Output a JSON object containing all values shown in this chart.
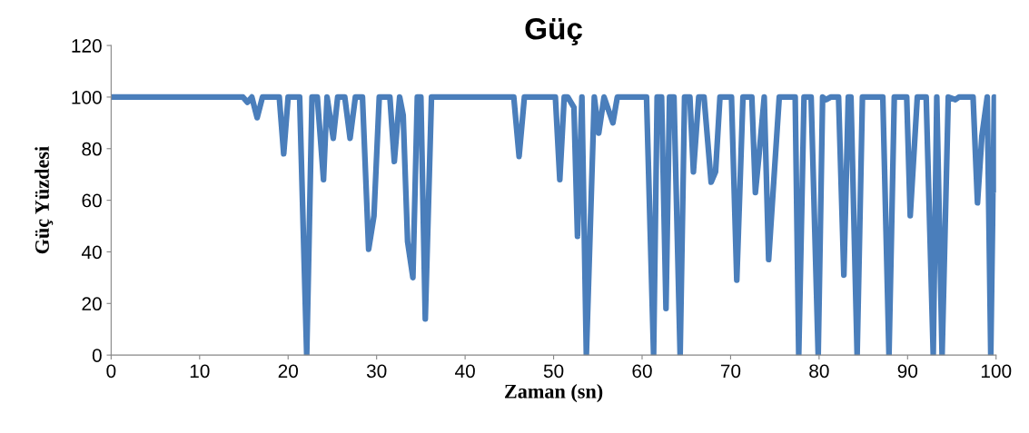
{
  "chart_data": {
    "type": "line",
    "title": "Güç",
    "xlabel": "Zaman (sn)",
    "ylabel": "Güç Yüzdesi",
    "xlim": [
      0,
      100
    ],
    "xticks": [
      0,
      10,
      20,
      30,
      40,
      50,
      60,
      70,
      80,
      90,
      100
    ],
    "ylim": [
      0,
      120
    ],
    "yticks": [
      0,
      20,
      40,
      60,
      80,
      100,
      120
    ],
    "grid": false,
    "legend": false,
    "marker": "none",
    "line_style": "solid",
    "series": [
      {
        "color": "#4a7ebb",
        "x": [
          0.3,
          14.9,
          15.4,
          15.9,
          16.5,
          17.1,
          19.0,
          19.5,
          20.0,
          21.3,
          22.1,
          22.7,
          23.3,
          24.0,
          24.4,
          25.1,
          25.6,
          26.4,
          27.0,
          27.6,
          28.4,
          29.1,
          29.7,
          30.3,
          31.5,
          32.0,
          32.6,
          33.0,
          33.5,
          34.1,
          34.6,
          35.0,
          35.5,
          36.2,
          45.5,
          46.1,
          46.7,
          50.2,
          50.7,
          51.2,
          51.6,
          52.3,
          52.7,
          53.2,
          53.7,
          54.6,
          55.1,
          55.7,
          56.7,
          57.2,
          60.5,
          61.3,
          61.7,
          62.2,
          62.7,
          63.1,
          63.6,
          64.3,
          64.8,
          65.4,
          65.8,
          66.4,
          67.0,
          67.8,
          68.3,
          68.8,
          70.1,
          70.7,
          71.4,
          72.4,
          72.8,
          73.2,
          73.8,
          74.3,
          75.5,
          77.3,
          77.7,
          78.3,
          79.1,
          79.9,
          80.4,
          80.8,
          81.3,
          82.2,
          82.8,
          83.3,
          83.6,
          84.3,
          84.9,
          87.2,
          87.9,
          88.5,
          89.9,
          90.3,
          91.1,
          92.1,
          92.9,
          93.3,
          93.9,
          94.6,
          95.4,
          95.8,
          97.4,
          97.9,
          98.4,
          99.0,
          99.4,
          99.8,
          100
        ],
        "values": [
          100,
          100,
          98,
          100,
          92,
          100,
          100,
          78,
          100,
          100,
          0,
          100,
          100,
          68,
          100,
          84,
          100,
          100,
          84,
          100,
          100,
          41,
          54,
          100,
          100,
          75,
          100,
          93,
          44,
          30,
          100,
          100,
          14,
          100,
          100,
          77,
          100,
          100,
          68,
          100,
          100,
          96,
          46,
          100,
          0,
          100,
          86,
          100,
          90,
          100,
          100,
          0,
          100,
          100,
          18,
          100,
          100,
          0,
          100,
          100,
          71,
          100,
          100,
          67,
          71,
          100,
          100,
          29,
          100,
          100,
          63,
          77,
          100,
          37,
          100,
          100,
          0,
          100,
          100,
          0,
          100,
          99,
          100,
          100,
          31,
          100,
          100,
          0,
          100,
          100,
          0,
          100,
          100,
          54,
          100,
          100,
          0,
          100,
          0,
          100,
          99,
          100,
          100,
          59,
          85,
          100,
          0,
          100,
          64
        ]
      }
    ]
  }
}
